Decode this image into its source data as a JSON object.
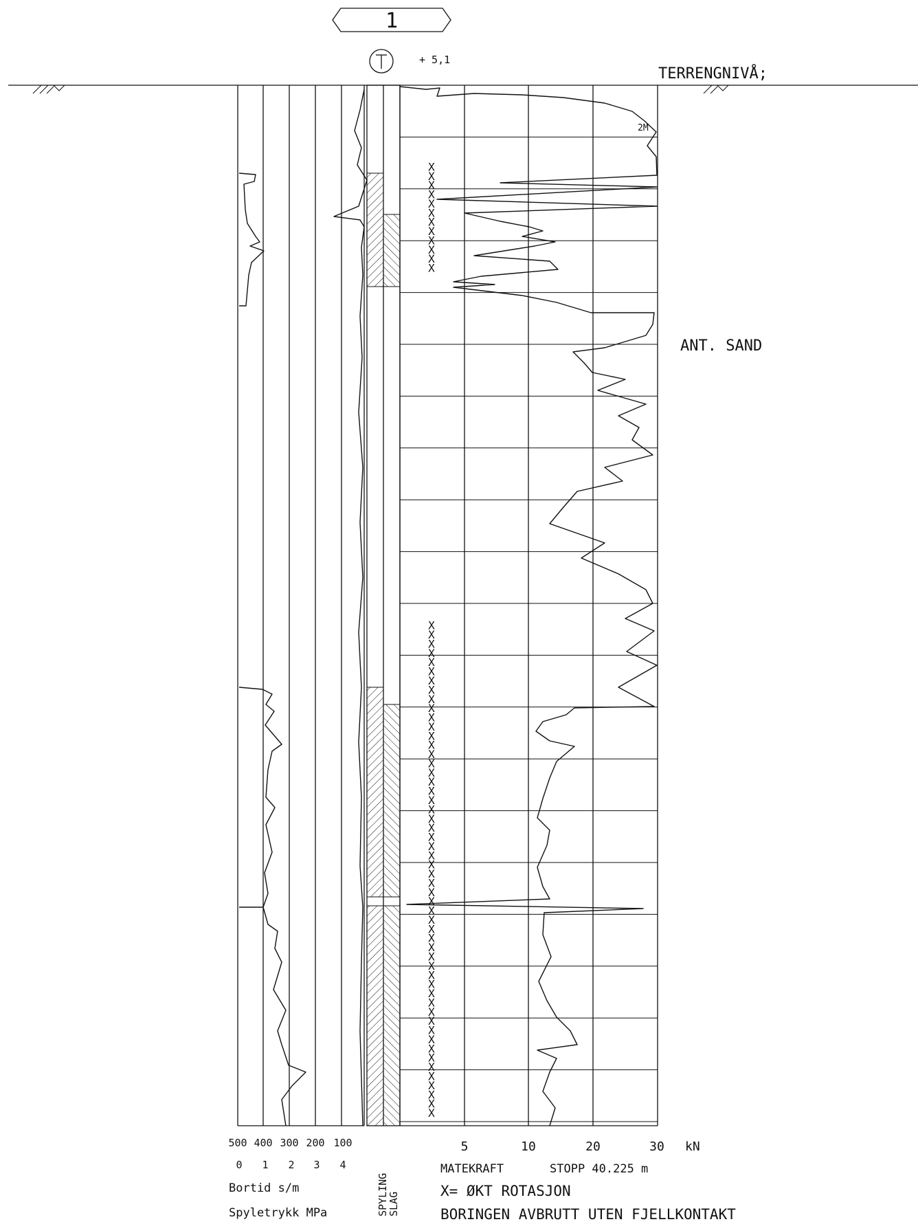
{
  "borehole": {
    "number": "1",
    "method_symbol": "T",
    "elevation_label": "+ 5,1"
  },
  "ground_level_label": "TERRENGNIVÅ;",
  "soil_annotation": "ANT. SAND",
  "depth_marker_label": "2M",
  "left_axis": {
    "bortid_ticks": [
      "500",
      "400",
      "300",
      "200",
      "100"
    ],
    "spyletrykk_ticks": [
      "0",
      "1",
      "2",
      "3",
      "4"
    ],
    "bortid_label": "Bortid s/m",
    "spyletrykk_label": "Spyletrykk MPa"
  },
  "mode_column_labels": [
    "SPYLING",
    "SLAG"
  ],
  "force_axis": {
    "ticks": [
      "5",
      "10",
      "20",
      "30"
    ],
    "unit": "kN"
  },
  "footer": {
    "matekraft_label": "MATEKRAFT",
    "stop_label": "STOPP 40.225 m",
    "legend_note": "X= ØKT ROTASJON",
    "termination_note": "BORINGEN AVBRUTT UTEN FJELLKONTAKT"
  },
  "chart_data": {
    "type": "line",
    "x_axis_label": "MATEKRAFT",
    "x_unit": "kN",
    "x_ticks": [
      5,
      10,
      20,
      30
    ],
    "stop_depth_m": 40.225,
    "markers": {
      "symbol": "X",
      "meaning": "ØKT ROTASJON",
      "depth_ranges_m": [
        [
          3.3,
          7.5
        ],
        [
          21.0,
          40.0
        ]
      ]
    },
    "mode_intervals": [
      {
        "mode": "spyling+slag",
        "from_m": 3.5,
        "to_m": 7.8
      },
      {
        "mode": "spyling+slag",
        "from_m": 23.5,
        "to_m": 40.225
      }
    ]
  },
  "colors": {
    "ink": "#111111",
    "paper": "#ffffff"
  }
}
